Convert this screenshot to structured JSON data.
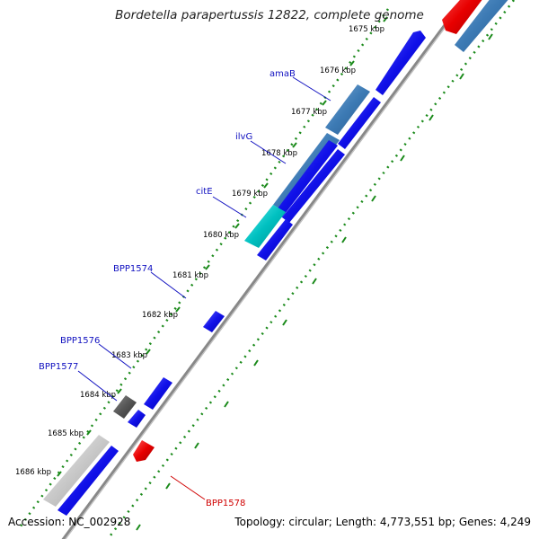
{
  "title": "Bordetella parapertussis 12822, complete genome",
  "accession": "Accession: NC_002928",
  "topology": "Topology: circular; Length: 4,773,551 bp; Genes: 4,249",
  "colors": {
    "forward_gene": "#1010e8",
    "reverse_gene": "#e80000",
    "steelblue_gene": "#3c7ab4",
    "cyan_gene": "#00c0c0",
    "gray_gene": "#555555",
    "lightgray_gene": "#c8c8c8",
    "backbone": "#888888",
    "ticks": "#1a8a1a",
    "forward_label": "#1010c0",
    "reverse_label": "#d00000"
  },
  "kbp_ticks": [
    "1675 kbp",
    "1676 kbp",
    "1677 kbp",
    "1678 kbp",
    "1679 kbp",
    "1680 kbp",
    "1681 kbp",
    "1682 kbp",
    "1683 kbp",
    "1684 kbp",
    "1685 kbp",
    "1686 kbp"
  ],
  "gene_labels": [
    {
      "name": "amaB",
      "strand": "forward"
    },
    {
      "name": "ilvG",
      "strand": "forward"
    },
    {
      "name": "citE",
      "strand": "forward"
    },
    {
      "name": "BPP1574",
      "strand": "forward"
    },
    {
      "name": "BPP1576",
      "strand": "forward"
    },
    {
      "name": "BPP1577",
      "strand": "forward"
    },
    {
      "name": "BPP1578",
      "strand": "reverse"
    }
  ]
}
